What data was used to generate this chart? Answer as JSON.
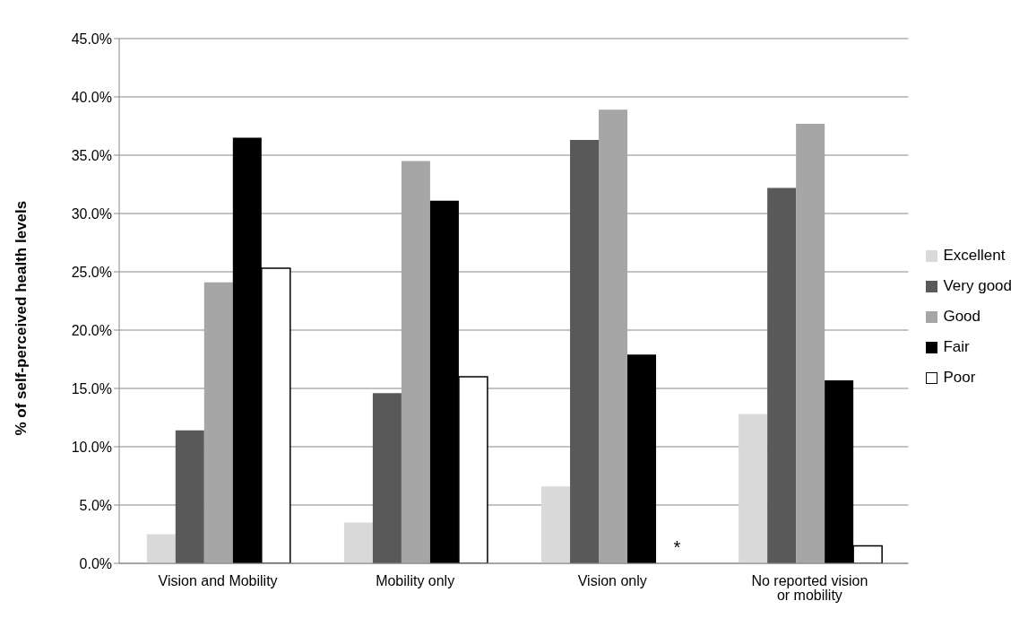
{
  "chart_data": {
    "type": "bar",
    "categories": [
      "Vision and Mobility",
      "Mobility only",
      "Vision only",
      "No reported vision or mobility"
    ],
    "series": [
      {
        "name": "Excellent",
        "color": "#d9d9d9",
        "values": [
          2.5,
          3.5,
          6.6,
          12.8
        ]
      },
      {
        "name": "Very good",
        "color": "#595959",
        "values": [
          11.4,
          14.6,
          36.3,
          32.2
        ]
      },
      {
        "name": "Good",
        "color": "#a6a6a6",
        "values": [
          24.1,
          34.5,
          38.9,
          37.7
        ]
      },
      {
        "name": "Fair",
        "color": "#000000",
        "values": [
          36.5,
          31.1,
          17.9,
          15.7
        ]
      },
      {
        "name": "Poor",
        "color": "#ffffff",
        "values": [
          25.3,
          16.0,
          null,
          1.5
        ]
      }
    ],
    "ylabel": "% of self-perceived health levels",
    "ylim": [
      0,
      45
    ],
    "yticks": [
      {
        "value": 0,
        "label": "0.0%"
      },
      {
        "value": 5,
        "label": "5.0%"
      },
      {
        "value": 10,
        "label": "10.0%"
      },
      {
        "value": 15,
        "label": "15.0%"
      },
      {
        "value": 20,
        "label": "20.0%"
      },
      {
        "value": 25,
        "label": "25.0%"
      },
      {
        "value": 30,
        "label": "30.0%"
      },
      {
        "value": 35,
        "label": "35.0%"
      },
      {
        "value": 40,
        "label": "40.0%"
      },
      {
        "value": 45,
        "label": "45.0%"
      }
    ],
    "annotations": [
      "*"
    ],
    "grid": "y",
    "legend": "right"
  }
}
